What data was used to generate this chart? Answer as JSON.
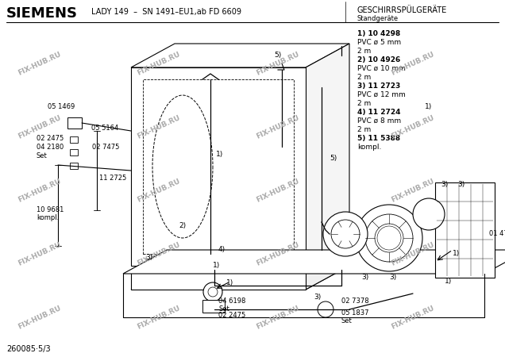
{
  "title_brand": "SIEMENS",
  "title_model": "LADY 149  –  SN 1491–EU1,ab FD 6609",
  "title_right_top": "GESCHIRRSPÜLGERÄTE",
  "title_right_sub": "Standgeräte",
  "parts_list": [
    {
      "text": "1) 10 4298",
      "bold": true
    },
    {
      "text": "PVC ø 5 mm",
      "bold": false
    },
    {
      "text": "2 m",
      "bold": false
    },
    {
      "text": "2) 10 4926",
      "bold": true
    },
    {
      "text": "PVC ø 10 mm",
      "bold": false
    },
    {
      "text": "2 m",
      "bold": false
    },
    {
      "text": "3) 11 2723",
      "bold": true
    },
    {
      "text": "PVC ø 12 mm",
      "bold": false
    },
    {
      "text": "2 m",
      "bold": false
    },
    {
      "text": "4) 11 2724",
      "bold": true
    },
    {
      "text": "PVC ø 8 mm",
      "bold": false
    },
    {
      "text": "2 m",
      "bold": false
    },
    {
      "text": "5) 11 5388",
      "bold": true
    },
    {
      "text": "kompl.",
      "bold": false
    }
  ],
  "footnote": "260085·5/3",
  "bg_color": "#ffffff",
  "text_color": "#000000",
  "fig_width": 6.36,
  "fig_height": 4.5,
  "dpi": 100
}
